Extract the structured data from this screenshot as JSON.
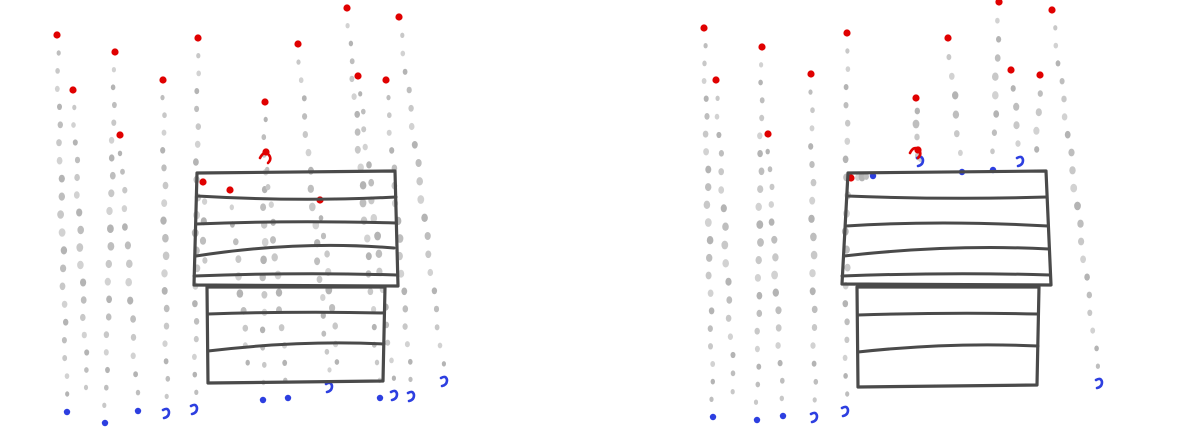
{
  "panels": [
    {
      "id": "left",
      "depiction": "sketch-without-collision-handling",
      "colors": {
        "trail": "#bdbdbd",
        "start": "#e00000",
        "end": "#2d3fe0",
        "object": "#4a4a4a"
      },
      "icons": [
        "particle-dot",
        "trail-dot",
        "hand-drawn-bench"
      ]
    },
    {
      "id": "right",
      "depiction": "sketch-with-collision-handling",
      "colors": {
        "trail": "#bdbdbd",
        "start": "#e00000",
        "end": "#2d3fe0",
        "object": "#4a4a4a"
      },
      "icons": [
        "particle-dot",
        "trail-dot",
        "hand-drawn-bench"
      ]
    }
  ]
}
